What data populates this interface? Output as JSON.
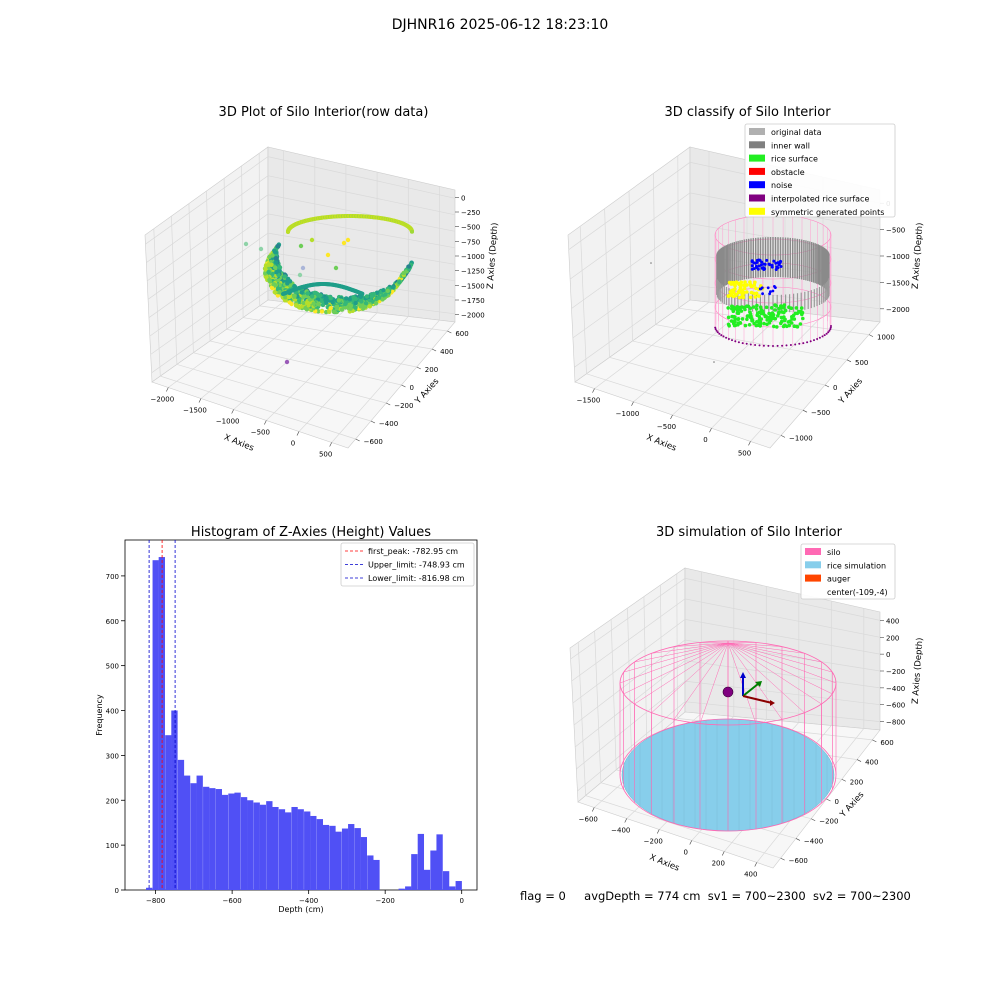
{
  "suptitle": "DJHNR16 2025-06-12 18:23:10",
  "status_line": {
    "flag": "flag = 0",
    "avg_depth": "avgDepth = 774 cm",
    "sv1": "sv1 = 700~2300",
    "sv2": "sv2 = 700~2300"
  },
  "colors": {
    "hist_bar": "#5050f5",
    "first_peak": "#ff0000",
    "limits": "#0000cc",
    "original_data": "#b0b0b0",
    "inner_wall": "#808080",
    "rice_surface": "#22ee22",
    "obstacle": "#ff0000",
    "noise": "#0000ff",
    "interpolated_rice_surface": "#800080",
    "symmetric_generated_points": "#ffff00",
    "silo": "#ff69b4",
    "rice_simulation": "#87ceeb",
    "auger": "#ff4500"
  },
  "chart_data": [
    {
      "type": "scatter",
      "projection": "3d",
      "title": "3D Plot of Silo Interior(row data)",
      "xlabel": "X Axies",
      "ylabel": "Y Axies",
      "zlabel": "Z Axies (Depth)",
      "xticks": [
        "−2000",
        "−1500",
        "−1000",
        "−500",
        "0",
        "500"
      ],
      "yticks": [
        "−600",
        "−400",
        "−200",
        "0",
        "200",
        "400",
        "600"
      ],
      "zticks": [
        "0",
        "−250",
        "−500",
        "−750",
        "−1000",
        "−1250",
        "−1500",
        "−1750",
        "−2000"
      ],
      "xlim": [
        -2000,
        500
      ],
      "ylim": [
        -600,
        600
      ],
      "zlim": [
        -2000,
        0
      ],
      "colormap": "viridis"
    },
    {
      "type": "scatter",
      "projection": "3d",
      "title": "3D classify of Silo Interior",
      "xlabel": "X Axies",
      "ylabel": "Y Axies",
      "zlabel": "Z Axies (Depth)",
      "xticks": [
        "−1500",
        "−1000",
        "−500",
        "0",
        "500"
      ],
      "yticks": [
        "−1000",
        "−500",
        "0",
        "500",
        "1000"
      ],
      "zticks": [
        "0",
        "−500",
        "−1000",
        "−1500",
        "−2000"
      ],
      "legend": [
        "original data",
        "inner wall",
        "rice surface",
        "obstacle",
        "noise",
        "interpolated rice surface",
        "symmetric generated points"
      ],
      "legend_position": "upper-right"
    },
    {
      "type": "bar",
      "title": "Histogram of Z-Axies (Height) Values",
      "xlabel": "Depth (cm)",
      "ylabel": "Frequency",
      "xlim": [
        -880,
        40
      ],
      "ylim": [
        0,
        780
      ],
      "xticks": [
        "−800",
        "−600",
        "−400",
        "−200",
        "0"
      ],
      "yticks": [
        "0",
        "100",
        "200",
        "300",
        "400",
        "500",
        "600",
        "700"
      ],
      "bin_width": 16.5,
      "bins": [
        {
          "x": -825,
          "y": 5
        },
        {
          "x": -808,
          "y": 735
        },
        {
          "x": -792,
          "y": 742
        },
        {
          "x": -775,
          "y": 345
        },
        {
          "x": -759,
          "y": 400
        },
        {
          "x": -742,
          "y": 290
        },
        {
          "x": -726,
          "y": 255
        },
        {
          "x": -709,
          "y": 238
        },
        {
          "x": -693,
          "y": 255
        },
        {
          "x": -676,
          "y": 230
        },
        {
          "x": -660,
          "y": 227
        },
        {
          "x": -643,
          "y": 225
        },
        {
          "x": -627,
          "y": 212
        },
        {
          "x": -610,
          "y": 215
        },
        {
          "x": -594,
          "y": 217
        },
        {
          "x": -577,
          "y": 207
        },
        {
          "x": -561,
          "y": 200
        },
        {
          "x": -544,
          "y": 195
        },
        {
          "x": -528,
          "y": 190
        },
        {
          "x": -511,
          "y": 198
        },
        {
          "x": -495,
          "y": 185
        },
        {
          "x": -478,
          "y": 180
        },
        {
          "x": -462,
          "y": 173
        },
        {
          "x": -445,
          "y": 185
        },
        {
          "x": -429,
          "y": 180
        },
        {
          "x": -412,
          "y": 175
        },
        {
          "x": -396,
          "y": 165
        },
        {
          "x": -379,
          "y": 158
        },
        {
          "x": -363,
          "y": 145
        },
        {
          "x": -346,
          "y": 143
        },
        {
          "x": -330,
          "y": 130
        },
        {
          "x": -313,
          "y": 137
        },
        {
          "x": -297,
          "y": 147
        },
        {
          "x": -280,
          "y": 138
        },
        {
          "x": -264,
          "y": 118
        },
        {
          "x": -247,
          "y": 77
        },
        {
          "x": -231,
          "y": 67
        },
        {
          "x": -165,
          "y": 3
        },
        {
          "x": -148,
          "y": 8
        },
        {
          "x": -132,
          "y": 80
        },
        {
          "x": -115,
          "y": 125
        },
        {
          "x": -99,
          "y": 45
        },
        {
          "x": -82,
          "y": 88
        },
        {
          "x": -66,
          "y": 124
        },
        {
          "x": -49,
          "y": 42
        },
        {
          "x": -33,
          "y": 8
        },
        {
          "x": -16,
          "y": 20
        }
      ],
      "lines": [
        {
          "label": "first_peak: -782.95 cm",
          "x": -782.95,
          "color_key": "first_peak"
        },
        {
          "label": "Upper_limit: -748.93 cm",
          "x": -748.93,
          "color_key": "limits"
        },
        {
          "label": "Lower_limit: -816.98 cm",
          "x": -816.98,
          "color_key": "limits"
        }
      ],
      "legend_position": "upper-right"
    },
    {
      "type": "scatter",
      "projection": "3d",
      "title": "3D simulation of Silo Interior",
      "xlabel": "X Axies",
      "ylabel": "Y Axies",
      "zlabel": "Z Axies (Depth)",
      "xticks": [
        "−600",
        "−400",
        "−200",
        "0",
        "200",
        "400"
      ],
      "yticks": [
        "−600",
        "−400",
        "−200",
        "0",
        "200",
        "400",
        "600"
      ],
      "zticks": [
        "400",
        "200",
        "0",
        "−200",
        "−400",
        "−600",
        "−800"
      ],
      "legend": [
        "silo",
        "rice simulation",
        "auger",
        "center(-109,-4)"
      ],
      "legend_position": "upper-right"
    }
  ]
}
